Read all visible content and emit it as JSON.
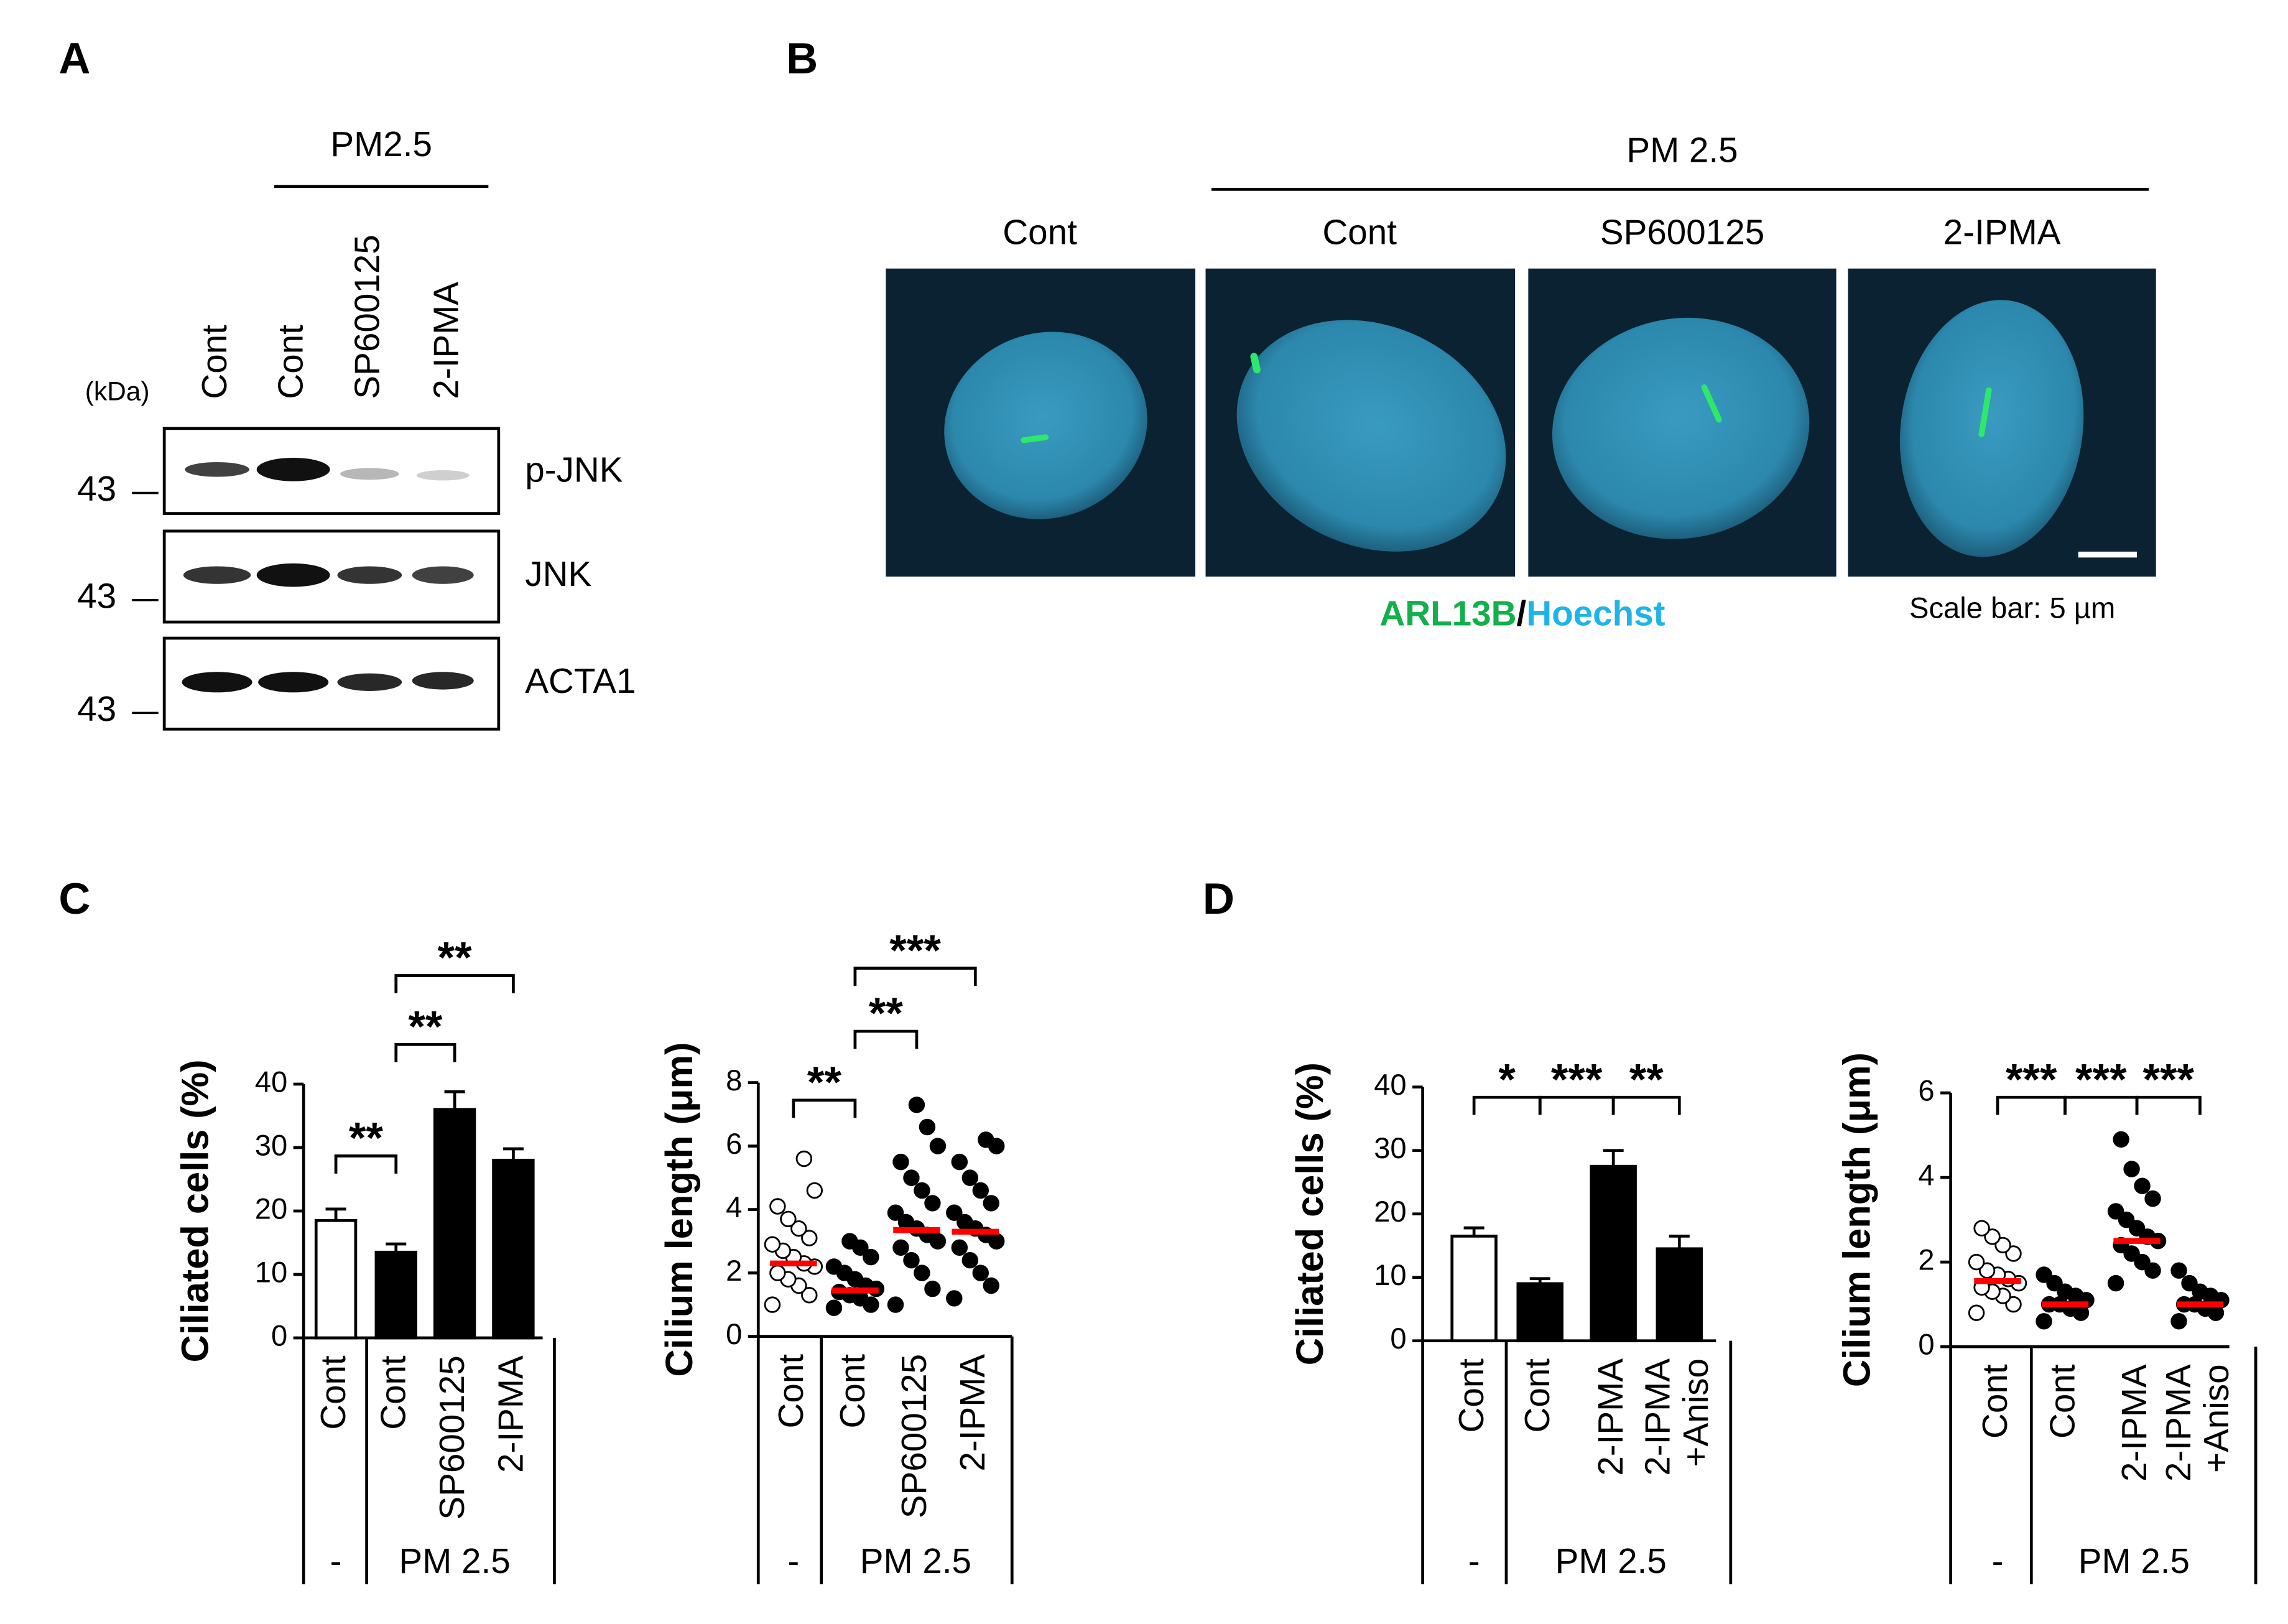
{
  "panel_labels": [
    "A",
    "B",
    "C",
    "D"
  ],
  "blot": {
    "header": "PM2.5",
    "lanes": [
      "Cont",
      "Cont",
      "SP600125",
      "2-IPMA"
    ],
    "unit": "(kDa)",
    "rows": [
      {
        "label": "p-JNK",
        "marker": "43"
      },
      {
        "label": "JNK",
        "marker": "43"
      },
      {
        "label": "ACTA1",
        "marker": "43"
      }
    ]
  },
  "images": {
    "header": "PM 2.5",
    "columns": [
      "Cont",
      "Cont",
      "SP600125",
      "2-IPMA"
    ],
    "caption": [
      "ARL13B",
      "/",
      "Hoechst"
    ],
    "scale_bar": "Scale bar: 5 µm"
  },
  "chart_data": [
    {
      "type": "bar",
      "y_label": "Ciliated cells (%)",
      "categories": [
        [
          "Cont"
        ],
        [
          "Cont"
        ],
        [
          "SP600125"
        ],
        [
          "2-IPMA"
        ]
      ],
      "values": [
        18.5,
        13.5,
        36,
        28
      ],
      "errors": [
        1.8,
        1.3,
        2.8,
        1.8
      ],
      "colors": [
        "#ffffff",
        "#000000",
        "#000000",
        "#000000"
      ],
      "ylim": [
        0,
        40
      ],
      "yticks": [
        0,
        10,
        20,
        30,
        40
      ],
      "groups": [
        {
          "label": "-",
          "span": 1
        },
        {
          "label": "PM 2.5",
          "span": 3
        }
      ],
      "significance": [
        {
          "from": 0,
          "to": 1,
          "label": "**"
        },
        {
          "from": 1,
          "to": 2,
          "label": "**"
        },
        {
          "from": 1,
          "to": 3,
          "label": "**"
        }
      ]
    },
    {
      "type": "scatter",
      "y_label": "Cilium length (μm)",
      "categories": [
        [
          "Cont"
        ],
        [
          "Cont"
        ],
        [
          "SP600125"
        ],
        [
          "2-IPMA"
        ]
      ],
      "means": [
        2.3,
        1.45,
        3.35,
        3.3
      ],
      "mean_color": "#ff0000",
      "points": [
        [
          1.0,
          1.3,
          1.6,
          1.8,
          2.0,
          2.2,
          2.3,
          2.5,
          2.7,
          2.9,
          3.1,
          3.4,
          3.7,
          4.1,
          4.6,
          5.6
        ],
        [
          0.9,
          1.0,
          1.2,
          1.3,
          1.4,
          1.5,
          1.6,
          1.8,
          2.0,
          2.2,
          2.5,
          2.8,
          3.0
        ],
        [
          1.0,
          1.5,
          2.0,
          2.4,
          2.8,
          3.0,
          3.2,
          3.4,
          3.6,
          3.9,
          4.2,
          4.6,
          5.0,
          5.5,
          6.0,
          6.6,
          7.3
        ],
        [
          1.2,
          1.6,
          2.0,
          2.4,
          2.8,
          3.0,
          3.2,
          3.4,
          3.6,
          3.9,
          4.2,
          4.6,
          5.0,
          5.5,
          6.0,
          6.2
        ]
      ],
      "colors": [
        "#ffffff",
        "#000000",
        "#000000",
        "#000000"
      ],
      "ylim": [
        0,
        8
      ],
      "yticks": [
        0,
        2,
        4,
        6,
        8
      ],
      "groups": [
        {
          "label": "-",
          "span": 1
        },
        {
          "label": "PM 2.5",
          "span": 3
        }
      ],
      "significance": [
        {
          "from": 0,
          "to": 1,
          "label": "**"
        },
        {
          "from": 1,
          "to": 2,
          "label": "**"
        },
        {
          "from": 1,
          "to": 3,
          "label": "***"
        }
      ]
    },
    {
      "type": "bar",
      "y_label": "Ciliated cells (%)",
      "categories": [
        [
          "Cont"
        ],
        [
          "Cont"
        ],
        [
          "2-IPMA"
        ],
        [
          "2-IPMA",
          "+Aniso"
        ]
      ],
      "values": [
        16.5,
        9,
        27.5,
        14.5
      ],
      "errors": [
        1.3,
        0.8,
        2.5,
        2
      ],
      "colors": [
        "#ffffff",
        "#000000",
        "#000000",
        "#000000"
      ],
      "ylim": [
        0,
        40
      ],
      "yticks": [
        0,
        10,
        20,
        30,
        40
      ],
      "groups": [
        {
          "label": "-",
          "span": 1
        },
        {
          "label": "PM 2.5",
          "span": 3
        }
      ],
      "significance": [
        {
          "from": 0,
          "to": 1,
          "label": "*"
        },
        {
          "from": 1,
          "to": 2,
          "label": "***"
        },
        {
          "from": 2,
          "to": 3,
          "label": "**"
        }
      ]
    },
    {
      "type": "scatter",
      "y_label": "Cilium length (μm)",
      "categories": [
        [
          "Cont"
        ],
        [
          "Cont"
        ],
        [
          "2-IPMA"
        ],
        [
          "2-IPMA",
          "+Aniso"
        ]
      ],
      "means": [
        1.55,
        1.0,
        2.5,
        1.0
      ],
      "mean_color": "#ff0000",
      "points": [
        [
          0.8,
          1.0,
          1.2,
          1.3,
          1.4,
          1.5,
          1.6,
          1.7,
          1.8,
          2.0,
          2.2,
          2.4,
          2.6,
          2.8
        ],
        [
          0.6,
          0.8,
          0.9,
          1.0,
          1.0,
          1.1,
          1.2,
          1.3,
          1.5,
          1.7
        ],
        [
          1.5,
          1.8,
          2.0,
          2.2,
          2.4,
          2.5,
          2.6,
          2.8,
          3.0,
          3.2,
          3.5,
          3.8,
          4.2,
          4.9
        ],
        [
          0.6,
          0.8,
          0.9,
          1.0,
          1.0,
          1.1,
          1.2,
          1.3,
          1.5,
          1.8
        ]
      ],
      "colors": [
        "#ffffff",
        "#000000",
        "#000000",
        "#000000"
      ],
      "ylim": [
        0,
        6
      ],
      "yticks": [
        0,
        2,
        4,
        6
      ],
      "groups": [
        {
          "label": "-",
          "span": 1
        },
        {
          "label": "PM 2.5",
          "span": 3
        }
      ],
      "significance": [
        {
          "from": 0,
          "to": 1,
          "label": "***"
        },
        {
          "from": 1,
          "to": 2,
          "label": "***"
        },
        {
          "from": 2,
          "to": 3,
          "label": "***"
        }
      ]
    }
  ]
}
